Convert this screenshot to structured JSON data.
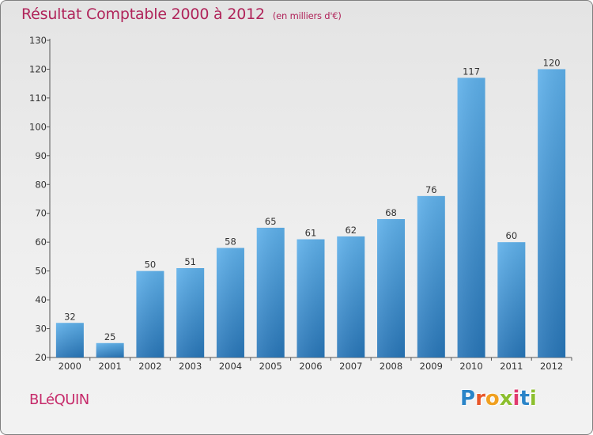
{
  "title": "Résultat Comptable 2000 à 2012",
  "subtitle": "(en milliers d'€)",
  "commune": "BLéQUIN",
  "logo": {
    "letters": [
      {
        "char": "P",
        "color": "#2a84c8"
      },
      {
        "char": "r",
        "color": "#e8572a"
      },
      {
        "char": "o",
        "color": "#f0a020"
      },
      {
        "char": "x",
        "color": "#8cbf2e"
      },
      {
        "char": "i",
        "color": "#e03a6e"
      },
      {
        "char": "t",
        "color": "#2a84c8"
      },
      {
        "char": "i",
        "color": "#8cbf2e"
      }
    ]
  },
  "chart_data": {
    "type": "bar",
    "title": "Résultat Comptable 2000 à 2012",
    "subtitle": "(en milliers d'€)",
    "xlabel": "",
    "ylabel": "",
    "categories": [
      "2000",
      "2001",
      "2002",
      "2003",
      "2004",
      "2005",
      "2006",
      "2007",
      "2008",
      "2009",
      "2010",
      "2011",
      "2012"
    ],
    "values": [
      32,
      25,
      50,
      51,
      58,
      65,
      61,
      62,
      68,
      76,
      117,
      60,
      120
    ],
    "ylim": [
      20,
      130
    ],
    "yticks": [
      20,
      30,
      40,
      50,
      60,
      70,
      80,
      90,
      100,
      110,
      120,
      130
    ],
    "grid": false,
    "colors": {
      "bar_light": "#5aade8",
      "bar_dark": "#2a7bbd",
      "axis": "#555555"
    }
  }
}
